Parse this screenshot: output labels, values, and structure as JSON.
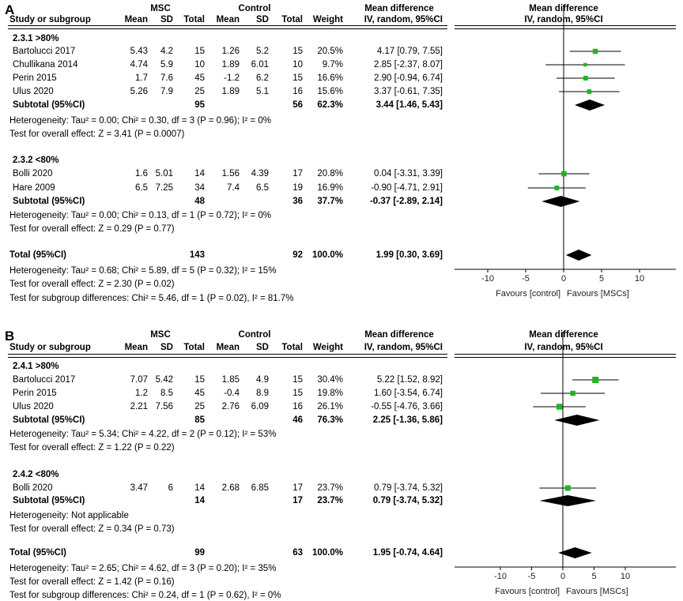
{
  "chart_data": [
    {
      "type": "forest",
      "panel_label": "A",
      "headers": {
        "study": "Study or subgroup",
        "group1": "MSC",
        "group2": "Control",
        "mean": "Mean",
        "sd": "SD",
        "total": "Total",
        "weight": "Weight",
        "md": "Mean difference",
        "method": "IV, random, 95%CI"
      },
      "subgroups": [
        {
          "label": "2.3.1 >80%",
          "studies": [
            {
              "name": "Bartolucci 2017",
              "m1": "5.43",
              "sd1": "4.2",
              "n1": "15",
              "m2": "1.26",
              "sd2": "5.2",
              "n2": "15",
              "weight": "20.5%",
              "ci_text": "4.17 [0.79, 7.55]",
              "est": 4.17,
              "lo": 0.79,
              "hi": 7.55,
              "w": 20.5
            },
            {
              "name": "Chullikana 2014",
              "m1": "4.74",
              "sd1": "5.9",
              "n1": "10",
              "m2": "1.89",
              "sd2": "6.01",
              "n2": "10",
              "weight": "9.7%",
              "ci_text": "2.85 [-2.37, 8.07]",
              "est": 2.85,
              "lo": -2.37,
              "hi": 8.07,
              "w": 9.7
            },
            {
              "name": "Perin 2015",
              "m1": "1.7",
              "sd1": "7.6",
              "n1": "45",
              "m2": "-1.2",
              "sd2": "6.2",
              "n2": "15",
              "weight": "16.6%",
              "ci_text": "2.90 [-0.94, 6.74]",
              "est": 2.9,
              "lo": -0.94,
              "hi": 6.74,
              "w": 16.6
            },
            {
              "name": "Ulus 2020",
              "m1": "5.26",
              "sd1": "7.9",
              "n1": "25",
              "m2": "1.89",
              "sd2": "5.1",
              "n2": "16",
              "weight": "15.6%",
              "ci_text": "3.37 [-0.61, 7.35]",
              "est": 3.37,
              "lo": -0.61,
              "hi": 7.35,
              "w": 15.6
            }
          ],
          "subtotal": {
            "label": "Subtotal (95%CI)",
            "n1": "95",
            "n2": "56",
            "weight": "62.3%",
            "ci_text": "3.44 [1.46, 5.43]",
            "est": 3.44,
            "lo": 1.46,
            "hi": 5.43
          },
          "heterogeneity": "Heterogeneity: Tau² = 0.00; Chi² = 0.30, df = 3 (P = 0.96); I² = 0%",
          "overall_effect": "Test for overall effect: Z = 3.41 (P = 0.0007)"
        },
        {
          "label": "2.3.2 <80%",
          "studies": [
            {
              "name": "Bolli 2020",
              "m1": "1.6",
              "sd1": "5.01",
              "n1": "14",
              "m2": "1.56",
              "sd2": "4.39",
              "n2": "17",
              "weight": "20.8%",
              "ci_text": "0.04 [-3.31, 3.39]",
              "est": 0.04,
              "lo": -3.31,
              "hi": 3.39,
              "w": 20.8
            },
            {
              "name": "Hare 2009",
              "m1": "6.5",
              "sd1": "7.25",
              "n1": "34",
              "m2": "7.4",
              "sd2": "6.5",
              "n2": "19",
              "weight": "16.9%",
              "ci_text": "-0.90 [-4.71, 2.91]",
              "est": -0.9,
              "lo": -4.71,
              "hi": 2.91,
              "w": 16.9
            }
          ],
          "subtotal": {
            "label": "Subtotal (95%CI)",
            "n1": "48",
            "n2": "36",
            "weight": "37.7%",
            "ci_text": "-0.37 [-2.89, 2.14]",
            "est": -0.37,
            "lo": -2.89,
            "hi": 2.14
          },
          "heterogeneity": "Heterogeneity: Tau² = 0.00; Chi² = 0.13, df = 1 (P = 0.72); I² = 0%",
          "overall_effect": "Test for overall effect: Z = 0.29 (P = 0.77)"
        }
      ],
      "total": {
        "label": "Total (95%CI)",
        "n1": "143",
        "n2": "92",
        "weight": "100.0%",
        "ci_text": "1.99 [0.30, 3.69]",
        "est": 1.99,
        "lo": 0.3,
        "hi": 3.69
      },
      "total_heterogeneity": "Heterogeneity: Tau² = 0.68; Chi² = 5.89, df = 5 (P = 0.32); I² = 15%",
      "total_overall_effect": "Test for overall effect: Z = 2.30 (P = 0.02)",
      "subgroup_differences": "Test for subgroup differences: Chi² = 5.46, df = 1 (P = 0.02), I² = 81.7%",
      "xlim": [
        -10,
        10
      ],
      "ticks": [
        -10,
        -5,
        0,
        5,
        10
      ],
      "tick_labels": [
        "-10",
        "-5",
        "0",
        "5",
        "10"
      ],
      "favours_left": "Favours [control]",
      "favours_right": "Favours [MSCs]",
      "colors": {
        "square": "#22b422",
        "diamond": "#000000"
      }
    },
    {
      "type": "forest",
      "panel_label": "B",
      "headers": {
        "study": "Study or subgroup",
        "group1": "MSC",
        "group2": "Control",
        "mean": "Mean",
        "sd": "SD",
        "total": "Total",
        "weight": "Weight",
        "md": "Mean difference",
        "method": "IV, random, 95%CI"
      },
      "subgroups": [
        {
          "label": "2.4.1 >80%",
          "studies": [
            {
              "name": "Bartolucci 2017",
              "m1": "7.07",
              "sd1": "5.42",
              "n1": "15",
              "m2": "1.85",
              "sd2": "4.9",
              "n2": "15",
              "weight": "30.4%",
              "ci_text": "5.22 [1.52, 8.92]",
              "est": 5.22,
              "lo": 1.52,
              "hi": 8.92,
              "w": 30.4
            },
            {
              "name": "Perin 2015",
              "m1": "1.2",
              "sd1": "8.5",
              "n1": "45",
              "m2": "-0.4",
              "sd2": "8.9",
              "n2": "15",
              "weight": "19.8%",
              "ci_text": "1.60 [-3.54, 6.74]",
              "est": 1.6,
              "lo": -3.54,
              "hi": 6.74,
              "w": 19.8
            },
            {
              "name": "Ulus 2020",
              "m1": "2.21",
              "sd1": "7.56",
              "n1": "25",
              "m2": "2.76",
              "sd2": "6.09",
              "n2": "16",
              "weight": "26.1%",
              "ci_text": "-0.55 [-4.76, 3.66]",
              "est": -0.55,
              "lo": -4.76,
              "hi": 3.66,
              "w": 26.1
            }
          ],
          "subtotal": {
            "label": "Subtotal (95%CI)",
            "n1": "85",
            "n2": "46",
            "weight": "76.3%",
            "ci_text": "2.25 [-1.36, 5.86]",
            "est": 2.25,
            "lo": -1.36,
            "hi": 5.86
          },
          "heterogeneity": "Heterogeneity: Tau² = 5.34; Chi² = 4.22, df = 2 (P = 0.12); I² = 53%",
          "overall_effect": "Test for overall effect: Z = 1.22 (P = 0.22)"
        },
        {
          "label": "2.4.2 <80%",
          "studies": [
            {
              "name": "Bolli 2020",
              "m1": "3.47",
              "sd1": "6",
              "n1": "14",
              "m2": "2.68",
              "sd2": "6.85",
              "n2": "17",
              "weight": "23.7%",
              "ci_text": "0.79 [-3.74, 5.32]",
              "est": 0.79,
              "lo": -3.74,
              "hi": 5.32,
              "w": 23.7
            }
          ],
          "subtotal": {
            "label": "Subtotal (95%CI)",
            "n1": "14",
            "n2": "17",
            "weight": "23.7%",
            "ci_text": "0.79 [-3.74, 5.32]",
            "est": 0.79,
            "lo": -3.74,
            "hi": 5.32
          },
          "heterogeneity": "Heterogeneity: Not applicable",
          "overall_effect": "Test for overall effect: Z = 0.34 (P = 0.73)"
        }
      ],
      "total": {
        "label": "Total (95%CI)",
        "n1": "99",
        "n2": "63",
        "weight": "100.0%",
        "ci_text": "1.95 [-0.74, 4.64]",
        "est": 1.95,
        "lo": -0.74,
        "hi": 4.64
      },
      "total_heterogeneity": "Heterogeneity: Tau² = 2.65; Chi² = 4.62, df = 3 (P = 0.20); I² = 35%",
      "total_overall_effect": "Test for overall effect: Z = 1.42 (P = 0.16)",
      "subgroup_differences": "Test for subgroup differences: Chi² = 0.24, df = 1 (P = 0.62), I² = 0%",
      "xlim": [
        -10,
        10
      ],
      "ticks": [
        -10,
        -5,
        0,
        5,
        10
      ],
      "tick_labels": [
        "-10",
        "-5",
        "0",
        "5",
        "10"
      ],
      "favours_left": "Favours [control]",
      "favours_right": "Favours [MSCs]",
      "colors": {
        "square": "#22b422",
        "diamond": "#000000"
      }
    }
  ]
}
